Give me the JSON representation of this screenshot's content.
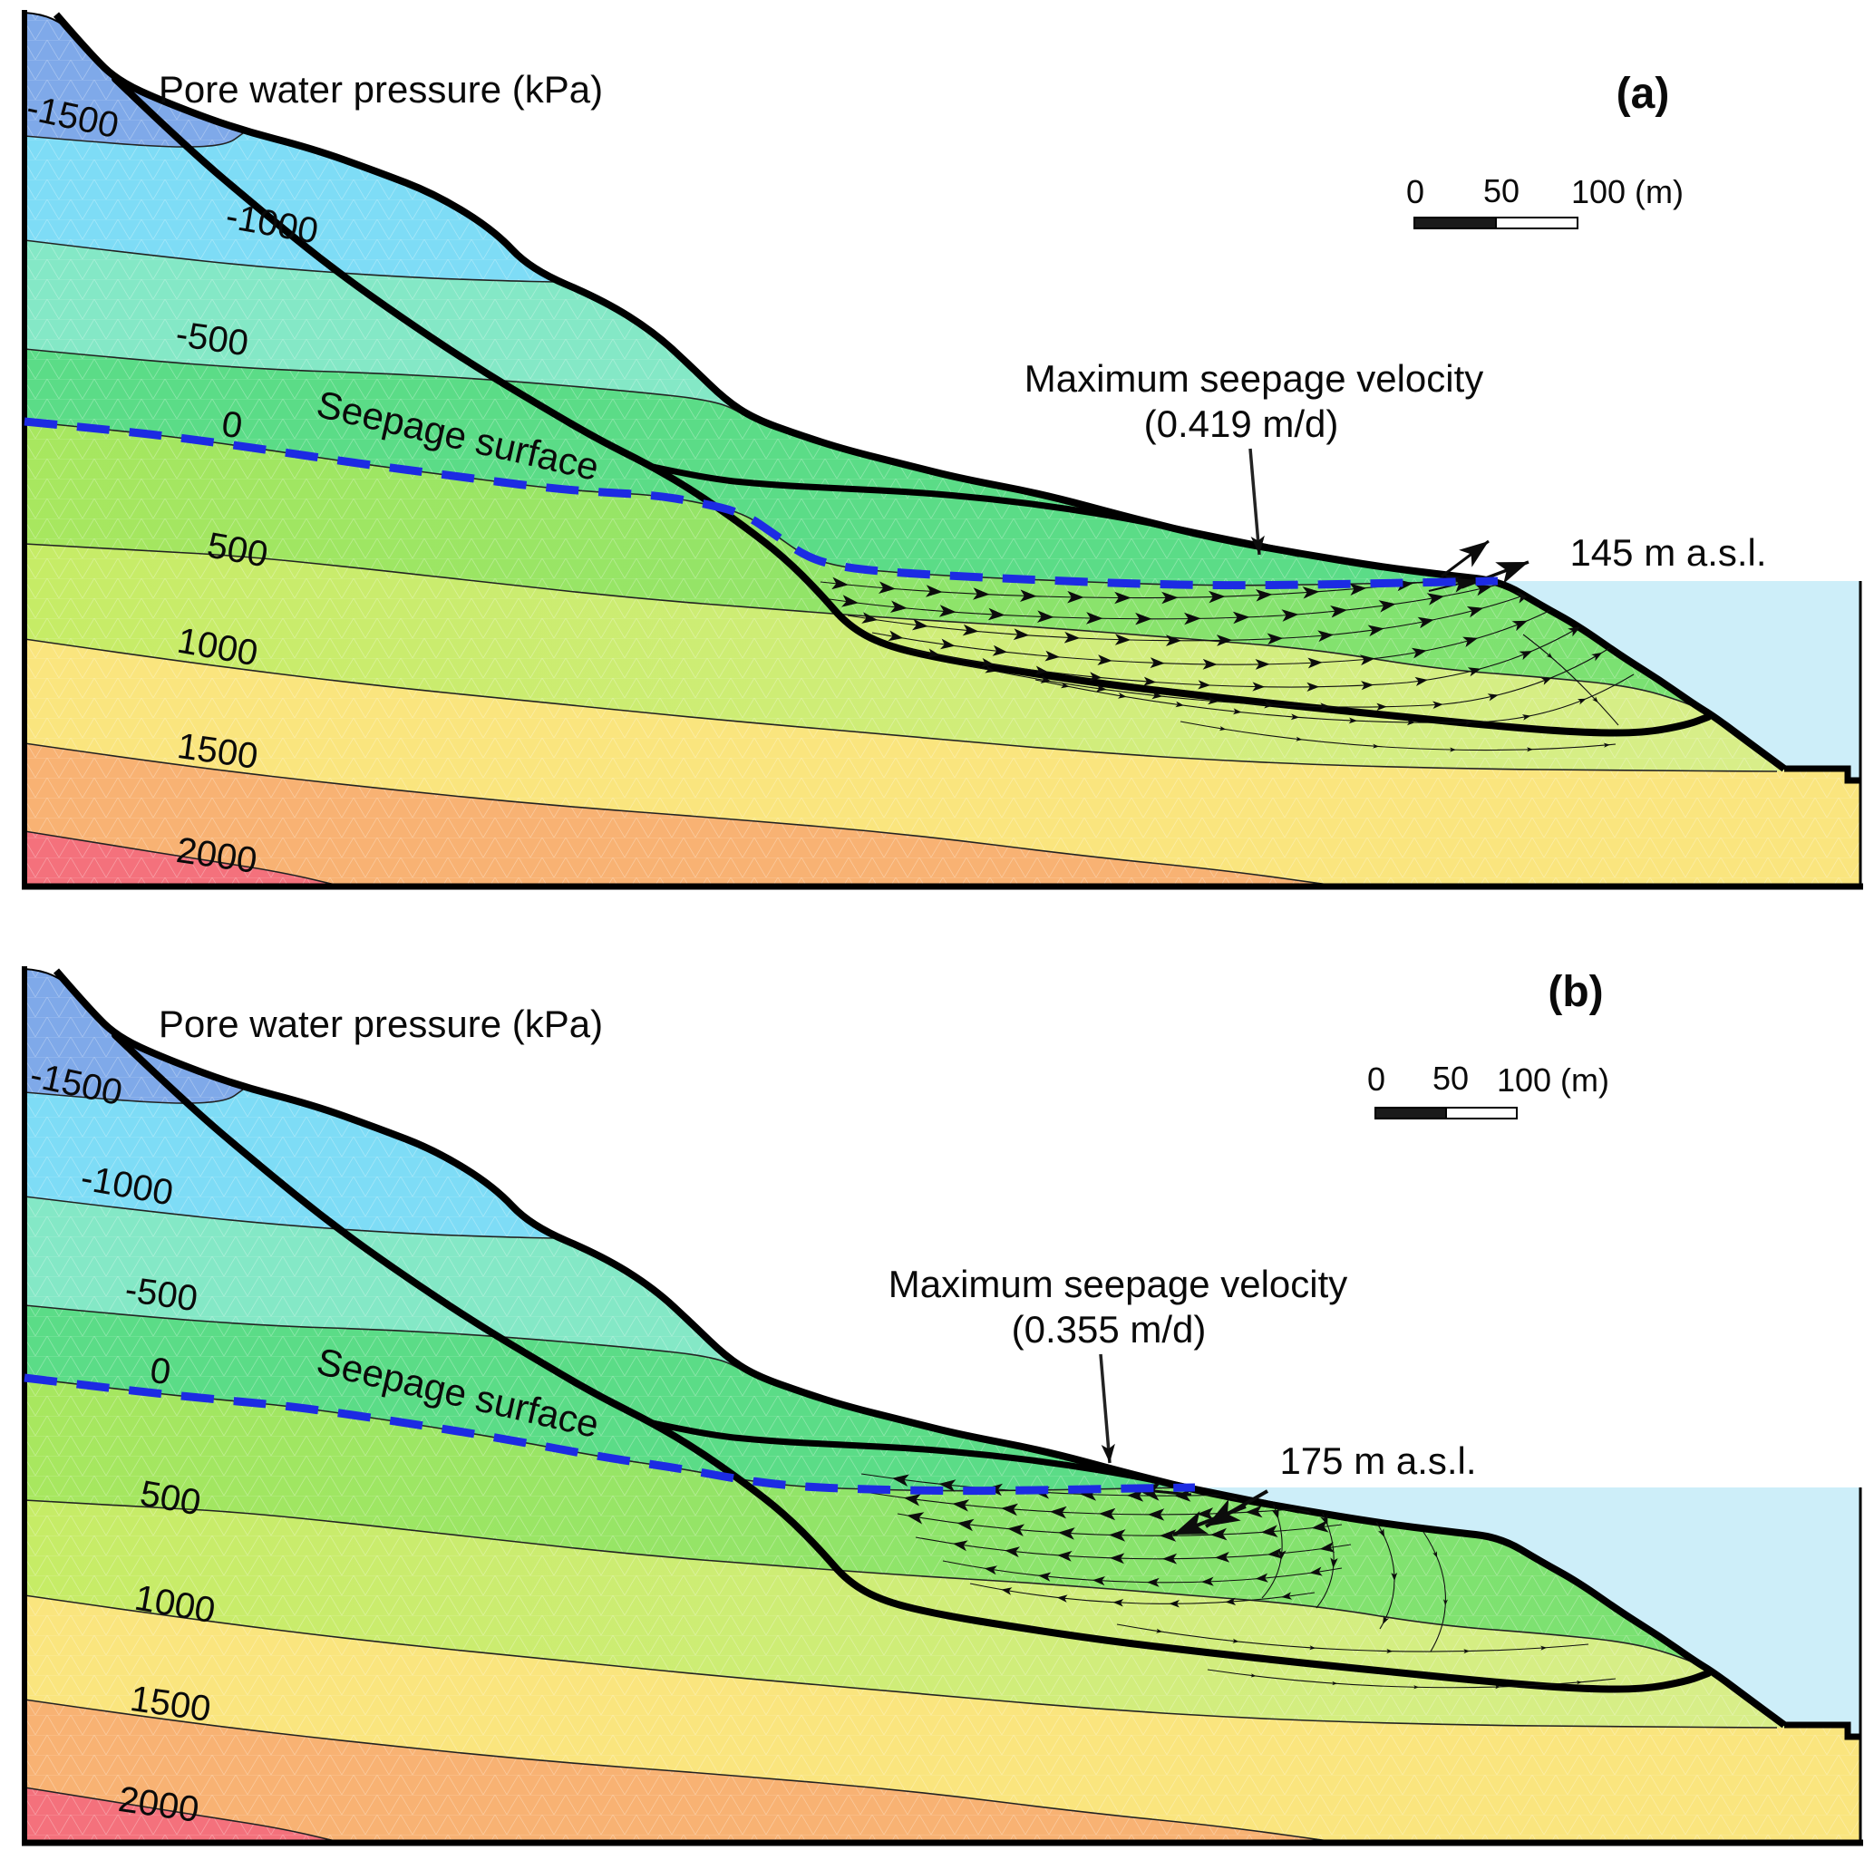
{
  "figure": {
    "kind": "pore water pressure cross-sections (slope seepage simulation)",
    "contour_levels_kpa": [
      -1500,
      -1000,
      -500,
      0,
      500,
      1000,
      1500,
      2000
    ],
    "colors": {
      "band_below_-1500": "#7FA9E9",
      "band_-1500_-1000": "#7EDCF6",
      "band_-1000_-500": "#84E8C6",
      "band_-500_0": "#5BDC87",
      "band_0_500": "#8BE466",
      "band_500_1000": "#C9ED6C",
      "band_1000_1500": "#FAE57E",
      "band_1500_2000": "#F8B273",
      "band_above_2000": "#F4717C",
      "water": "#CDEEF9",
      "seepage_line": "#1C2BE3",
      "lines": "#000000"
    },
    "panels": [
      {
        "label": "(a)",
        "title": "Pore water pressure (kPa)",
        "contours": [
          "-1500",
          "-1000",
          "-500",
          "0",
          "500",
          "1000",
          "1500",
          "2000"
        ],
        "seepage_surface_label": "Seepage surface",
        "max_velocity_line1": "Maximum seepage velocity",
        "max_velocity_line2": "(0.419 m/d)",
        "max_seepage_velocity_m_per_d": 0.419,
        "water_level_label": "145 m a.s.l.",
        "water_level_m_asl": 145,
        "scale_bar": [
          "0",
          "50",
          "100 (m)"
        ]
      },
      {
        "label": "(b)",
        "title": "Pore water pressure (kPa)",
        "contours": [
          "-1500",
          "-1000",
          "-500",
          "0",
          "500",
          "1000",
          "1500",
          "2000"
        ],
        "seepage_surface_label": "Seepage surface",
        "max_velocity_line1": "Maximum seepage velocity",
        "max_velocity_line2": "(0.355 m/d)",
        "max_seepage_velocity_m_per_d": 0.355,
        "water_level_label": "175 m a.s.l.",
        "water_level_m_asl": 175,
        "scale_bar": [
          "0",
          "50",
          "100 (m)"
        ]
      }
    ]
  }
}
